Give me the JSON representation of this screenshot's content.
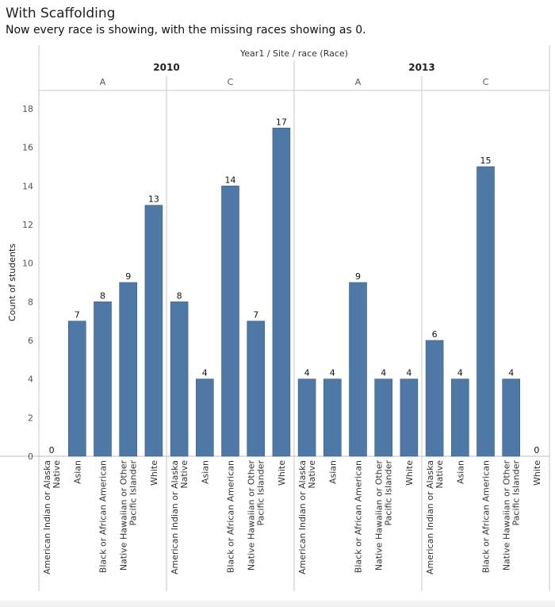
{
  "title": "With Scaffolding",
  "subtitle": "Now every race is showing, with the missing races showing as 0.",
  "chart_data": {
    "type": "bar",
    "header_label": "Year1  /  Site  /  race (Race)",
    "ylabel": "Count of students",
    "ylim": [
      0,
      18
    ],
    "yticks": [
      0,
      2,
      4,
      6,
      8,
      10,
      12,
      14,
      16,
      18
    ],
    "bar_color": "#4e79a7",
    "groups": [
      {
        "year": "2010",
        "sites": [
          {
            "site": "A",
            "bars": [
              {
                "race": "American Indian or Alaska Native",
                "value": 0
              },
              {
                "race": "Asian",
                "value": 7
              },
              {
                "race": "Black or African American",
                "value": 8
              },
              {
                "race": "Native Hawaiian or Other Pacific Islander",
                "value": 9
              },
              {
                "race": "White",
                "value": 13
              }
            ]
          },
          {
            "site": "C",
            "bars": [
              {
                "race": "American Indian or Alaska Native",
                "value": 8
              },
              {
                "race": "Asian",
                "value": 4
              },
              {
                "race": "Black or African American",
                "value": 14
              },
              {
                "race": "Native Hawaiian or Other Pacific Islander",
                "value": 7
              },
              {
                "race": "White",
                "value": 17
              }
            ]
          }
        ]
      },
      {
        "year": "2013",
        "sites": [
          {
            "site": "A",
            "bars": [
              {
                "race": "American Indian or Alaska Native",
                "value": 4
              },
              {
                "race": "Asian",
                "value": 4
              },
              {
                "race": "Black or African American",
                "value": 9
              },
              {
                "race": "Native Hawaiian or Other Pacific Islander",
                "value": 4
              },
              {
                "race": "White",
                "value": 4
              }
            ]
          },
          {
            "site": "C",
            "bars": [
              {
                "race": "American Indian or Alaska Native",
                "value": 6
              },
              {
                "race": "Asian",
                "value": 4
              },
              {
                "race": "Black or African American",
                "value": 15
              },
              {
                "race": "Native Hawaiian or Other Pacific Islander",
                "value": 4
              },
              {
                "race": "White",
                "value": 0
              }
            ]
          }
        ]
      }
    ]
  }
}
